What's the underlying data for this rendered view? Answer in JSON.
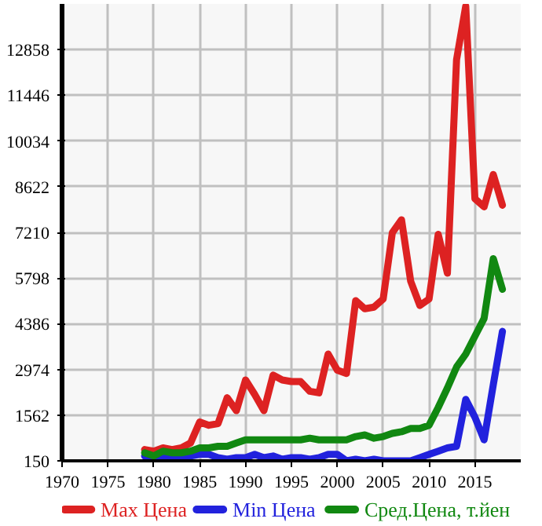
{
  "chart_data": {
    "type": "line",
    "x": [
      1979,
      1980,
      1981,
      1982,
      1983,
      1984,
      1985,
      1986,
      1987,
      1988,
      1989,
      1990,
      1991,
      1992,
      1993,
      1994,
      1995,
      1996,
      1997,
      1998,
      1999,
      2000,
      2001,
      2002,
      2003,
      2004,
      2005,
      2006,
      2007,
      2008,
      2009,
      2010,
      2011,
      2012,
      2013,
      2014,
      2015,
      2016,
      2017,
      2018
    ],
    "series": [
      {
        "name": "Max Цена",
        "color": "#dd2222",
        "values": [
          500,
          450,
          550,
          500,
          550,
          700,
          1350,
          1250,
          1300,
          2100,
          1700,
          2650,
          2200,
          1700,
          2800,
          2650,
          2600,
          2600,
          2300,
          2250,
          3450,
          2950,
          2850,
          5100,
          4850,
          4900,
          5150,
          7200,
          7600,
          5700,
          4950,
          5150,
          7150,
          5950,
          12550,
          14200,
          8250,
          8000,
          9000,
          8050
        ]
      },
      {
        "name": "Min Цена",
        "color": "#2222dd",
        "values": [
          300,
          250,
          300,
          250,
          250,
          300,
          350,
          350,
          250,
          200,
          250,
          250,
          350,
          250,
          300,
          200,
          250,
          250,
          200,
          250,
          350,
          350,
          150,
          200,
          150,
          200,
          150,
          150,
          150,
          150,
          250,
          350,
          450,
          550,
          600,
          2050,
          1500,
          800,
          2500,
          4150
        ]
      },
      {
        "name": "Сред.Цена, т.йен",
        "color": "#118811",
        "values": [
          400,
          300,
          450,
          400,
          400,
          450,
          550,
          550,
          600,
          600,
          700,
          800,
          800,
          800,
          800,
          800,
          800,
          800,
          850,
          800,
          800,
          800,
          800,
          900,
          950,
          850,
          900,
          1000,
          1050,
          1150,
          1150,
          1250,
          1800,
          2400,
          3050,
          3450,
          4000,
          4550,
          6400,
          5450
        ]
      }
    ],
    "xlim": [
      1970,
      2020
    ],
    "ylim": [
      150,
      14270
    ],
    "xticks": [
      1970,
      1975,
      1980,
      1985,
      1990,
      1995,
      2000,
      2005,
      2010,
      2015
    ],
    "yticks": [
      150,
      1562,
      2974,
      4386,
      5798,
      7210,
      8622,
      10034,
      11446,
      12858
    ],
    "grid": true,
    "legend": "bottom",
    "line_style": "solid",
    "marker": "none"
  }
}
